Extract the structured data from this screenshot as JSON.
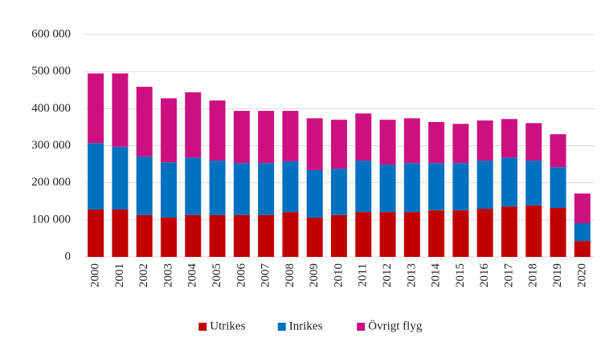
{
  "chart_data": {
    "type": "stacked_bar",
    "categories": [
      "2000",
      "2001",
      "2002",
      "2003",
      "2004",
      "2005",
      "2006",
      "2007",
      "2008",
      "2009",
      "2010",
      "2011",
      "2012",
      "2013",
      "2014",
      "2015",
      "2016",
      "2017",
      "2018",
      "2019",
      "2020"
    ],
    "series": [
      {
        "name": "Utrikes",
        "color": "#c00000",
        "values": [
          128000,
          128000,
          113000,
          106000,
          113000,
          113000,
          113000,
          113000,
          121000,
          106000,
          113000,
          121000,
          121000,
          121000,
          126000,
          126000,
          130000,
          136000,
          139000,
          132000,
          43000
        ]
      },
      {
        "name": "Inrikes",
        "color": "#0070c0",
        "values": [
          179000,
          169000,
          158000,
          149000,
          155000,
          147000,
          140000,
          140000,
          137000,
          128000,
          125000,
          139000,
          128000,
          132000,
          127000,
          127000,
          130000,
          132000,
          121000,
          110000,
          48000
        ]
      },
      {
        "name": "Övrigt flyg",
        "color": "#cc1080",
        "values": [
          188000,
          198000,
          188000,
          173000,
          176000,
          162000,
          141000,
          141000,
          136000,
          140000,
          132000,
          127000,
          121000,
          121000,
          111000,
          106000,
          108000,
          104000,
          101000,
          89000,
          80000
        ]
      }
    ],
    "ylim": [
      0,
      600000
    ],
    "yticks": [
      0,
      {
        "value": 100000,
        "label": "100 000"
      },
      {
        "value": 200000,
        "label": "200 000"
      },
      {
        "value": 300000,
        "label": "300 000"
      },
      {
        "value": 400000,
        "label": "400 000"
      },
      {
        "value": 500000,
        "label": "500 000"
      },
      {
        "value": 600000,
        "label": "600 000"
      }
    ],
    "grid": true,
    "legend": "bottom"
  }
}
